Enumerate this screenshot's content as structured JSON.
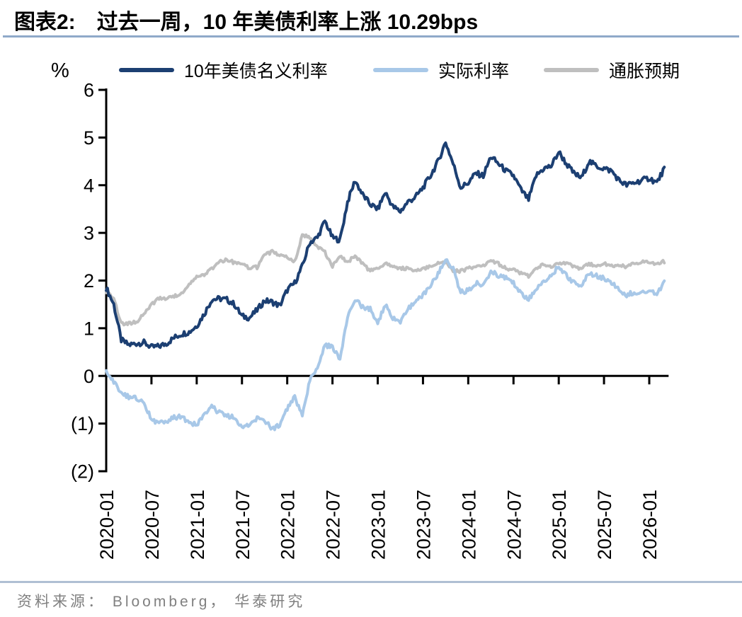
{
  "page": {
    "title_prefix": "图表2:",
    "title_text": "过去一周，10 年美债利率上涨 10.29bps",
    "unit_label": "%",
    "source_text": "资料来源： Bloomberg， 华泰研究"
  },
  "colors": {
    "nominal": "#1C3F72",
    "real": "#A8C8E8",
    "breakeven": "#BFBFBF",
    "axis": "#000000",
    "title_rule": "#8FA9C9",
    "footer_rule": "#AFBFD3",
    "source_text_color": "#808080"
  },
  "chart_data": {
    "type": "line",
    "title": "过去一周，10 年美债利率上涨 10.29bps",
    "ylabel": "%",
    "ylim": [
      -2,
      6
    ],
    "yticks": [
      6,
      5,
      4,
      3,
      2,
      1,
      0,
      -1,
      -2
    ],
    "ytick_labels": [
      "6",
      "5",
      "4",
      "3",
      "2",
      "1",
      "0",
      "(1)",
      "(2)"
    ],
    "grid": false,
    "legend_position": "top",
    "x_start_month": "2020-01",
    "x_months_per_point": 1,
    "x_tick_interval_months": 6,
    "x_tick_labels": [
      "2020-01",
      "2020-07",
      "2021-01",
      "2021-07",
      "2022-01",
      "2022-07",
      "2023-01",
      "2023-07",
      "2024-01",
      "2024-07",
      "2025-01",
      "2025-07",
      "2026-01"
    ],
    "noise_amplitude": [
      0.06,
      0.05,
      0.035
    ],
    "series": [
      {
        "name": "10年美债名义利率",
        "color_key": "nominal",
        "values": [
          1.85,
          1.5,
          0.75,
          0.65,
          0.68,
          0.7,
          0.6,
          0.62,
          0.68,
          0.8,
          0.88,
          0.92,
          1.05,
          1.3,
          1.6,
          1.62,
          1.6,
          1.5,
          1.25,
          1.22,
          1.38,
          1.58,
          1.55,
          1.47,
          1.8,
          1.95,
          2.3,
          2.8,
          2.9,
          3.25,
          2.9,
          2.85,
          3.65,
          4.1,
          3.8,
          3.6,
          3.5,
          3.85,
          3.55,
          3.45,
          3.65,
          3.75,
          3.95,
          4.2,
          4.5,
          4.9,
          4.45,
          3.95,
          4.05,
          4.25,
          4.2,
          4.6,
          4.45,
          4.3,
          4.2,
          3.9,
          3.7,
          4.2,
          4.35,
          4.4,
          4.7,
          4.45,
          4.25,
          4.15,
          4.5,
          4.4,
          4.35,
          4.3,
          4.1,
          4.0,
          4.05,
          4.1,
          4.15,
          4.05,
          4.35
        ]
      },
      {
        "name": "实际利率",
        "color_key": "real",
        "values": [
          0.08,
          -0.12,
          -0.35,
          -0.45,
          -0.45,
          -0.6,
          -0.9,
          -1.0,
          -0.95,
          -0.88,
          -0.85,
          -1.0,
          -1.02,
          -0.8,
          -0.65,
          -0.77,
          -0.85,
          -0.87,
          -1.05,
          -1.05,
          -0.9,
          -0.95,
          -1.1,
          -1.05,
          -0.7,
          -0.45,
          -0.85,
          -0.1,
          0.2,
          0.65,
          0.6,
          0.35,
          1.25,
          1.6,
          1.45,
          1.4,
          1.1,
          1.5,
          1.2,
          1.15,
          1.4,
          1.55,
          1.7,
          1.9,
          2.15,
          2.45,
          2.25,
          1.75,
          1.8,
          1.95,
          1.9,
          2.2,
          2.1,
          2.05,
          1.95,
          1.75,
          1.6,
          1.85,
          2.0,
          2.1,
          2.3,
          2.1,
          1.95,
          1.9,
          2.15,
          2.1,
          2.05,
          1.95,
          1.8,
          1.7,
          1.75,
          1.75,
          1.8,
          1.72,
          1.95
        ]
      },
      {
        "name": "通胀预期",
        "color_key": "breakeven",
        "values": [
          1.77,
          1.62,
          1.1,
          1.1,
          1.13,
          1.3,
          1.5,
          1.62,
          1.63,
          1.68,
          1.73,
          1.92,
          2.07,
          2.1,
          2.25,
          2.39,
          2.45,
          2.37,
          2.33,
          2.27,
          2.28,
          2.53,
          2.6,
          2.52,
          2.5,
          2.4,
          2.95,
          2.9,
          2.7,
          2.6,
          2.3,
          2.5,
          2.4,
          2.5,
          2.35,
          2.2,
          2.25,
          2.35,
          2.3,
          2.25,
          2.25,
          2.2,
          2.25,
          2.3,
          2.35,
          2.4,
          2.2,
          2.2,
          2.25,
          2.3,
          2.3,
          2.4,
          2.35,
          2.25,
          2.25,
          2.15,
          2.1,
          2.25,
          2.35,
          2.3,
          2.35,
          2.35,
          2.3,
          2.25,
          2.35,
          2.3,
          2.35,
          2.3,
          2.3,
          2.3,
          2.35,
          2.4,
          2.4,
          2.35,
          2.4
        ]
      }
    ]
  }
}
